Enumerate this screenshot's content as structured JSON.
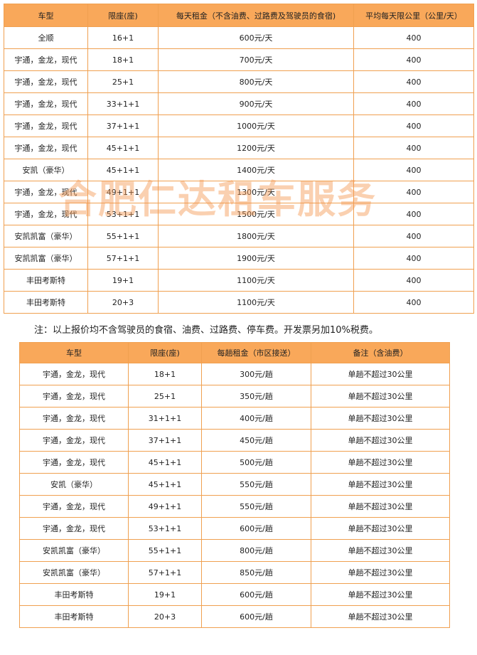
{
  "table1": {
    "header": [
      "车型",
      "限座(座)",
      "每天租金（不含油费、过路费及驾驶员的食宿)",
      "平均每天限公里（公里/天）"
    ],
    "rows": [
      [
        "全顺",
        "16+1",
        "600元/天",
        "400"
      ],
      [
        "宇通，金龙，现代",
        "18+1",
        "700元/天",
        "400"
      ],
      [
        "宇通，金龙，现代",
        "25+1",
        "800元/天",
        "400"
      ],
      [
        "宇通，金龙，现代",
        "33+1+1",
        "900元/天",
        "400"
      ],
      [
        "宇通，金龙，现代",
        "37+1+1",
        "1000元/天",
        "400"
      ],
      [
        "宇通，金龙，现代",
        "45+1+1",
        "1200元/天",
        "400"
      ],
      [
        "安凯（豪华）",
        "45+1+1",
        "1400元/天",
        "400"
      ],
      [
        "宇通，金龙，现代",
        "49+1+1",
        "1300元/天",
        "400"
      ],
      [
        "宇通，金龙，现代",
        "53+1+1",
        "1500元/天",
        "400"
      ],
      [
        "安凯凯富（豪华）",
        "55+1+1",
        "1800元/天",
        "400"
      ],
      [
        "安凯凯富（豪华）",
        "57+1+1",
        "1900元/天",
        "400"
      ],
      [
        "丰田考斯特",
        "19+1",
        "1100元/天",
        "400"
      ],
      [
        "丰田考斯特",
        "20+3",
        "1100元/天",
        "400"
      ]
    ]
  },
  "watermark": "合肥仁达租车服务",
  "note": "注：以上报价均不含驾驶员的食宿、油费、过路费、停车费。开发票另加10%税费。",
  "table2": {
    "header": [
      "车型",
      "限座(座)",
      "每趟租金（市区接送）",
      "备注（含油费）"
    ],
    "rows": [
      [
        "宇通，金龙，现代",
        "18+1",
        "300元/趟",
        "单趟不超过30公里"
      ],
      [
        "宇通，金龙，现代",
        "25+1",
        "350元/趟",
        "单趟不超过30公里"
      ],
      [
        "宇通，金龙，现代",
        "31+1+1",
        "400元/趟",
        "单趟不超过30公里"
      ],
      [
        "宇通，金龙，现代",
        "37+1+1",
        "450元/趟",
        "单趟不超过30公里"
      ],
      [
        "宇通，金龙，现代",
        "45+1+1",
        "500元/趟",
        "单趟不超过30公里"
      ],
      [
        "安凯（豪华）",
        "45+1+1",
        "550元/趟",
        "单趟不超过30公里"
      ],
      [
        "宇通，金龙，现代",
        "49+1+1",
        "550元/趟",
        "单趟不超过30公里"
      ],
      [
        "宇通，金龙，现代",
        "53+1+1",
        "600元/趟",
        "单趟不超过30公里"
      ],
      [
        "安凯凯富（豪华）",
        "55+1+1",
        "800元/趟",
        "单趟不超过30公里"
      ],
      [
        "安凯凯富（豪华）",
        "57+1+1",
        "850元/趟",
        "单趟不超过30公里"
      ],
      [
        "丰田考斯特",
        "19+1",
        "600元/趟",
        "单趟不超过30公里"
      ],
      [
        "丰田考斯特",
        "20+3",
        "600元/趟",
        "单趟不超过30公里"
      ]
    ]
  }
}
